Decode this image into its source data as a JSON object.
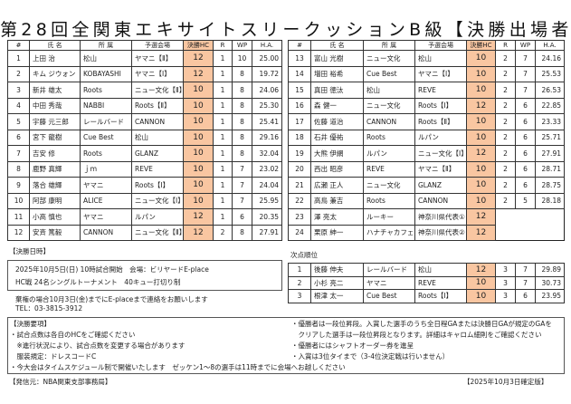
{
  "title": "第28回全関東エキサイトスリークッションB級【決勝出場者一覧】",
  "columns": [
    "#",
    "氏 名",
    "所 属",
    "予選会場",
    "決勝HC",
    "R",
    "WP",
    "H.A."
  ],
  "accent_color": "#f9c6a1",
  "players": [
    [
      "1",
      "上田 治",
      "松山",
      "ヤマニ【Ⅱ】",
      "12",
      "1",
      "10",
      "25.00"
    ],
    [
      "2",
      "キム ジウォン",
      "KOBAYASHI",
      "ヤマニ【Ⅰ】",
      "12",
      "1",
      "8",
      "19.72"
    ],
    [
      "3",
      "新井 雄太",
      "Roots",
      "ニュー文化【Ⅱ】",
      "10",
      "1",
      "8",
      "24.06"
    ],
    [
      "4",
      "中田 秀哉",
      "NABBI",
      "Roots【Ⅱ】",
      "10",
      "1",
      "8",
      "25.30"
    ],
    [
      "5",
      "宇藤 元三郎",
      "レールバード",
      "CANNON",
      "10",
      "1",
      "8",
      "25.41"
    ],
    [
      "6",
      "宮下 龍樹",
      "Cue Best",
      "松山",
      "10",
      "1",
      "8",
      "29.16"
    ],
    [
      "7",
      "吉安 修",
      "Roots",
      "GLANZ",
      "10",
      "1",
      "8",
      "32.04"
    ],
    [
      "8",
      "鹿野 真輝",
      "ｊｍ",
      "REVE",
      "10",
      "1",
      "7",
      "23.02"
    ],
    [
      "9",
      "落合 雄輝",
      "ヤマニ",
      "Roots【Ⅰ】",
      "10",
      "1",
      "7",
      "24.04"
    ],
    [
      "10",
      "阿部 康明",
      "ALICE",
      "ニュー文化【Ⅰ】",
      "10",
      "1",
      "7",
      "25.95"
    ],
    [
      "11",
      "小高 慎也",
      "ヤマニ",
      "ルパン",
      "12",
      "1",
      "6",
      "20.35"
    ],
    [
      "12",
      "安斉 篤毅",
      "CANNON",
      "ニュー文化【Ⅱ】",
      "12",
      "2",
      "8",
      "27.91"
    ],
    [
      "13",
      "富山 光樹",
      "ニュー文化",
      "松山",
      "10",
      "2",
      "7",
      "24.16"
    ],
    [
      "14",
      "増田 裕希",
      "Cue Best",
      "ヤマニ【Ⅰ】",
      "10",
      "2",
      "7",
      "25.53"
    ],
    [
      "15",
      "真田 徳汰",
      "松山",
      "REVE",
      "10",
      "2",
      "7",
      "26.53"
    ],
    [
      "16",
      "森 健一",
      "ニュー文化",
      "Roots【Ⅰ】",
      "12",
      "2",
      "6",
      "22.85"
    ],
    [
      "17",
      "佐藤 道治",
      "CANNON",
      "Roots【Ⅱ】",
      "10",
      "2",
      "6",
      "23.33"
    ],
    [
      "18",
      "石井 優祐",
      "Roots",
      "ルパン",
      "10",
      "2",
      "6",
      "25.71"
    ],
    [
      "19",
      "大熊 伊網",
      "ルパン",
      "ニュー文化【Ⅰ】",
      "12",
      "2",
      "6",
      "27.91"
    ],
    [
      "20",
      "西出 昭彦",
      "REVE",
      "ヤマニ【Ⅱ】",
      "10",
      "2",
      "6",
      "28.71"
    ],
    [
      "21",
      "広瀬 正人",
      "ニュー文化",
      "GLANZ",
      "10",
      "2",
      "6",
      "28.75"
    ],
    [
      "22",
      "高鳥 兼吉",
      "Roots",
      "CANNON",
      "10",
      "2",
      "5",
      "28.18"
    ],
    [
      "23",
      "澤 亮太",
      "ルーキー",
      "神奈川県代表①",
      "12",
      "",
      "",
      ""
    ],
    [
      "24",
      "栗原 紳一",
      "ハナチャカフェ",
      "神奈川県代表②",
      "12",
      "",
      "",
      ""
    ]
  ],
  "schedule": {
    "label": "【決勝日時】",
    "line1": "2025年10月5日(日) 10時試合開始　会場：ビリヤードE-place",
    "line2": "HC戦 24名シングルトーナメント　40キュー打切り制",
    "note1": "棄権の場合10月3日(金)までにE-placeまで連絡をお願いします",
    "note2": "TEL：03-3815-3912"
  },
  "alternates": {
    "label": "次点順位",
    "rows": [
      [
        "1",
        "後藤 伸夫",
        "レールバード",
        "松山",
        "12",
        "3",
        "7",
        "29.89"
      ],
      [
        "2",
        "小杉 亮二",
        "ヤマニ",
        "REVE",
        "10",
        "3",
        "7",
        "30.73"
      ],
      [
        "3",
        "根津 太一",
        "Cue Best",
        "Roots【Ⅰ】",
        "10",
        "3",
        "6",
        "23.95"
      ]
    ]
  },
  "rules": {
    "left": [
      "【決勝要項】",
      "・試合点数は各自のHCをご確認ください",
      "　※進行状況により、試合点数を変更する場合があります",
      "　服装規定：ドレスコードC"
    ],
    "right": [
      "・優勝者は一段位昇段。入賞した選手のうち全日程GAまたは決勝日GAが規定のGAを",
      "　クリアした選手は一段位昇段となります。詳細はキャロム細則をご確認ください",
      "・優勝者にはシャフトオーダー券を進呈",
      "・入賞は3位タイまで（3-4位決定戦は行いません）"
    ],
    "bottom": "・今大会はタイムスケジュール制で開催いたします　ゼッケン1～8の選手は11時までに会場へお越しください"
  },
  "footer": {
    "publisher": "【発信元：NBA関東支部事務局】",
    "version": "【2025年10月3日確定版】"
  }
}
